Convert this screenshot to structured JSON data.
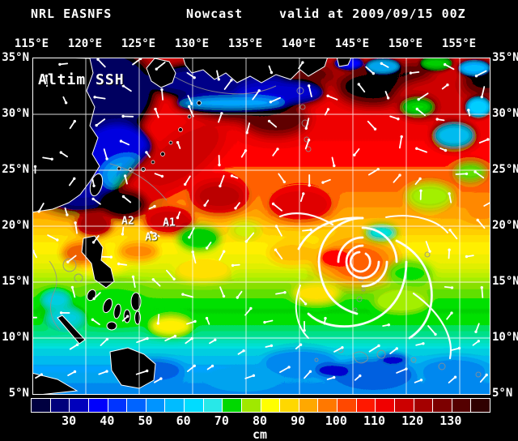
{
  "header": {
    "product": "NRL EASNFS",
    "mode": "Nowcast",
    "valid": "valid at 2009/09/15 00Z"
  },
  "axes": {
    "lon": [
      "115°E",
      "120°E",
      "125°E",
      "130°E",
      "135°E",
      "140°E",
      "145°E",
      "150°E",
      "155°E"
    ],
    "lat": [
      "35°N",
      "30°N",
      "25°N",
      "20°N",
      "15°N",
      "10°N",
      "5°N"
    ]
  },
  "map_overlay": {
    "field_label": "Altim SSH",
    "annotations": [
      "A1",
      "A2",
      "A3"
    ]
  },
  "colorbar": {
    "unit": "cm",
    "ticks": [
      "30",
      "40",
      "50",
      "60",
      "70",
      "80",
      "90",
      "100",
      "110",
      "120",
      "130"
    ],
    "cell_colors": [
      "#000040",
      "#00007c",
      "#0000bc",
      "#0000fc",
      "#0034ff",
      "#0064ff",
      "#0094ff",
      "#00bcff",
      "#00dcff",
      "#28e8e8",
      "#00d800",
      "#a0e800",
      "#ffff00",
      "#ffd800",
      "#ffa800",
      "#ff7800",
      "#ff4800",
      "#ff1800",
      "#f00000",
      "#cc0000",
      "#a40000",
      "#7c0000",
      "#540000",
      "#300000"
    ]
  },
  "colors": {
    "background": "#000000",
    "text": "#ffffff",
    "grid": "#ffffff",
    "land": "#000000",
    "coastline": "#ffffff",
    "vectors": "#ffffff"
  },
  "chart_data": {
    "type": "heatmap",
    "title": "NRL EASNFS Nowcast — Altimeter Sea Surface Height, valid at 2009/09/15 00Z",
    "value_units": "cm",
    "value_scale_min": 20,
    "value_scale_max": 140,
    "value_scale_step": 5,
    "lon_extent": [
      "115°E",
      "158°E"
    ],
    "lat_extent": [
      "5°N",
      "35°N"
    ],
    "grid_interval_deg": 5,
    "station_labels": [
      "A1",
      "A2",
      "A3"
    ]
  }
}
